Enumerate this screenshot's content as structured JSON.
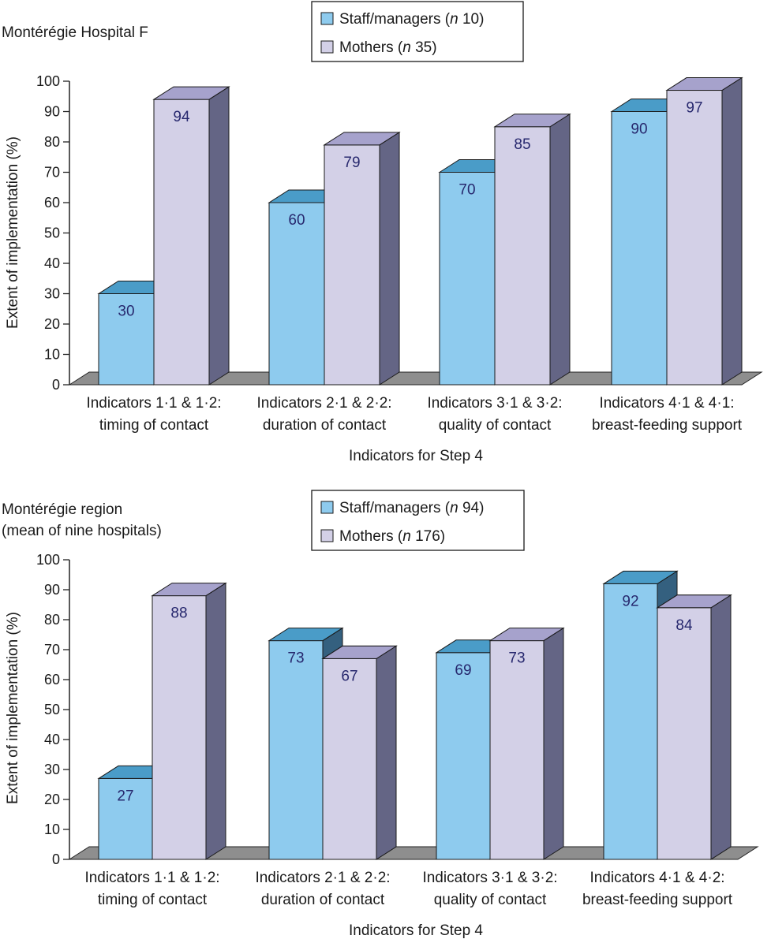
{
  "colors": {
    "staff_front": "#8ECBEE",
    "staff_top": "#4A9CC8",
    "staff_side_dark": "#34607F",
    "mothers_front": "#D3D0E7",
    "mothers_top": "#A6A2CC",
    "mothers_side": "#646585",
    "floor": "#8E8E8E",
    "value_label": "#27286E"
  },
  "chart_data": [
    {
      "type": "bar",
      "title": "Montérégie Hospital F",
      "subtitle": "",
      "xlabel": "Indicators for Step 4",
      "ylabel": "Extent of implementation (%)",
      "ylim": [
        0,
        100
      ],
      "yticks": [
        "0",
        "10",
        "20",
        "30",
        "40",
        "50",
        "60",
        "70",
        "80",
        "90",
        "100"
      ],
      "categories": [
        [
          "Indicators 1·1 & 1·2:",
          "timing of contact"
        ],
        [
          "Indicators 2·1 & 2·2:",
          "duration of contact"
        ],
        [
          "Indicators 3·1 & 3·2:",
          "quality of contact"
        ],
        [
          "Indicators 4·1 & 4·1:",
          "breast-feeding support"
        ]
      ],
      "legend": [
        {
          "pre": "Staff/managers (",
          "n": "n",
          "post": " 10)"
        },
        {
          "pre": "Mothers (",
          "n": "n",
          "post": " 35)"
        }
      ],
      "series": [
        {
          "name": "Staff/managers",
          "values": [
            30,
            60,
            70,
            90
          ]
        },
        {
          "name": "Mothers",
          "values": [
            94,
            79,
            85,
            97
          ]
        }
      ]
    },
    {
      "type": "bar",
      "title": "Montérégie region",
      "subtitle": "(mean of nine hospitals)",
      "xlabel": "Indicators for Step 4",
      "ylabel": "Extent of implementation (%)",
      "ylim": [
        0,
        100
      ],
      "yticks": [
        "0",
        "10",
        "20",
        "30",
        "40",
        "50",
        "60",
        "70",
        "80",
        "90",
        "100"
      ],
      "categories": [
        [
          "Indicators 1·1 & 1·2:",
          "timing of contact"
        ],
        [
          "Indicators 2·1 & 2·2:",
          "duration of contact"
        ],
        [
          "Indicators 3·1 & 3·2:",
          "quality of contact"
        ],
        [
          "Indicators 4·1 & 4·2:",
          "breast-feeding support"
        ]
      ],
      "legend": [
        {
          "pre": "Staff/managers (",
          "n": "n",
          "post": " 94)"
        },
        {
          "pre": "Mothers (",
          "n": "n",
          "post": " 176)"
        }
      ],
      "series": [
        {
          "name": "Staff/managers",
          "values": [
            27,
            73,
            69,
            92
          ]
        },
        {
          "name": "Mothers",
          "values": [
            88,
            67,
            73,
            84
          ]
        }
      ]
    }
  ]
}
